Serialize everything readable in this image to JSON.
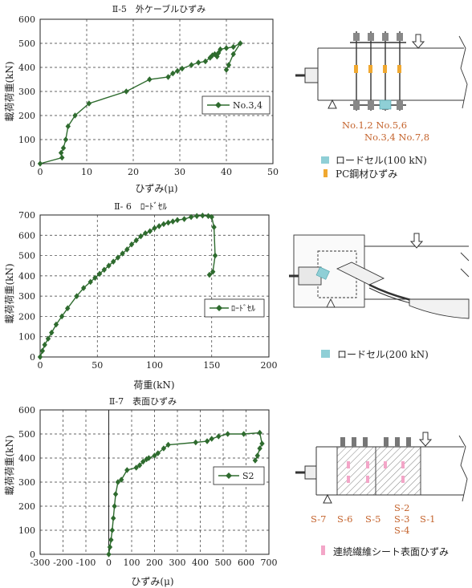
{
  "chart_data": [
    {
      "type": "line",
      "title": "Ⅱ-5　外ケーブルひずみ",
      "xlabel": "ひずみ(μ)",
      "ylabel": "載荷荷重(kN)",
      "xlim": [
        0,
        50
      ],
      "ylim": [
        0,
        600
      ],
      "xticks": [
        "0",
        "10",
        "20",
        "30",
        "40",
        "50"
      ],
      "yticks": [
        "0",
        "100",
        "200",
        "300",
        "400",
        "500",
        "600"
      ],
      "grid": true,
      "legend_position": "right",
      "series": [
        {
          "name": "No.3,4",
          "color": "#2e6b2e",
          "x": [
            0,
            4.7,
            4.5,
            5.0,
            5.5,
            6.0,
            7.5,
            10.5,
            18.5,
            23.5,
            27.5,
            28.5,
            29.5,
            30.5,
            32.5,
            34.0,
            35.5,
            36.5,
            37.0,
            37.5,
            38.0,
            38.3,
            38.7,
            40.0,
            41.5,
            43.0,
            41.5,
            40.5,
            40.0
          ],
          "y": [
            0,
            25,
            45,
            65,
            100,
            155,
            200,
            250,
            300,
            350,
            360,
            375,
            385,
            395,
            410,
            420,
            425,
            440,
            450,
            455,
            445,
            460,
            475,
            480,
            485,
            500,
            455,
            410,
            390
          ]
        }
      ]
    },
    {
      "type": "line",
      "title": "Ⅱ- 6　ﾛｰﾄﾞｾﾙ",
      "xlabel": "荷重(kN)",
      "ylabel": "載荷荷重(kN)",
      "xlim": [
        0,
        200
      ],
      "ylim": [
        0,
        700
      ],
      "xticks": [
        "0",
        "50",
        "100",
        "150",
        "200"
      ],
      "yticks": [
        "0",
        "100",
        "200",
        "300",
        "400",
        "500",
        "600",
        "700"
      ],
      "grid": true,
      "legend_position": "right",
      "series": [
        {
          "name": "ﾛｰﾄﾞｾﾙ",
          "color": "#2e6b2e",
          "x": [
            0,
            2,
            4,
            7,
            10,
            14,
            19,
            24,
            32,
            38,
            44,
            48,
            52,
            56,
            60,
            64,
            68,
            72,
            76,
            80,
            84,
            88,
            92,
            96,
            100,
            104,
            108,
            112,
            116,
            120,
            126,
            132,
            137,
            142,
            147,
            150,
            152,
            153,
            151,
            148
          ],
          "y": [
            0,
            30,
            60,
            90,
            120,
            160,
            200,
            240,
            300,
            340,
            370,
            390,
            410,
            430,
            450,
            470,
            490,
            510,
            530,
            555,
            575,
            595,
            610,
            620,
            635,
            645,
            655,
            662,
            668,
            675,
            680,
            690,
            695,
            697,
            695,
            690,
            640,
            500,
            420,
            405
          ]
        }
      ]
    },
    {
      "type": "line",
      "title": "Ⅱ-7　表面ひずみ",
      "xlabel": "ひずみ(μ)",
      "ylabel": "載荷荷重(kN)",
      "xlim": [
        -300,
        700
      ],
      "ylim": [
        0,
        600
      ],
      "xticks": [
        "-300",
        "-200",
        "-100",
        "0",
        "100",
        "200",
        "300",
        "400",
        "500",
        "600",
        "700"
      ],
      "yticks": [
        "0",
        "100",
        "200",
        "300",
        "400",
        "500",
        "600"
      ],
      "grid": true,
      "legend_position": "right",
      "series": [
        {
          "name": "S2",
          "color": "#2e6b2e",
          "x": [
            0,
            5,
            10,
            15,
            20,
            25,
            30,
            40,
            55,
            80,
            120,
            135,
            150,
            165,
            175,
            200,
            215,
            240,
            260,
            380,
            430,
            450,
            480,
            520,
            590,
            660,
            670,
            660,
            650,
            640
          ],
          "y": [
            0,
            30,
            60,
            100,
            150,
            200,
            250,
            300,
            310,
            350,
            360,
            370,
            385,
            395,
            400,
            410,
            420,
            440,
            455,
            465,
            470,
            480,
            490,
            500,
            500,
            505,
            460,
            440,
            410,
            390
          ]
        }
      ]
    }
  ],
  "figures": {
    "fig1": {
      "labels_row1": "No.1,2  No.5,6",
      "labels_row2": "No.3,4  No.7,8",
      "legend1": "ロードセル(100 kN)",
      "legend2": "PC鋼材ひずみ",
      "legend1_color": "#8fcfd6",
      "legend2_color": "#f0a830"
    },
    "fig2": {
      "legend1": "ロードセル(200 kN)",
      "legend1_color": "#8fcfd6"
    },
    "fig3": {
      "labels": [
        "S-2",
        "S-7",
        "S-6",
        "S-5",
        "S-3",
        "S-1",
        "S-4"
      ],
      "legend1": "連続繊維シート表面ひずみ",
      "legend1_color": "#f3a6c8"
    }
  }
}
